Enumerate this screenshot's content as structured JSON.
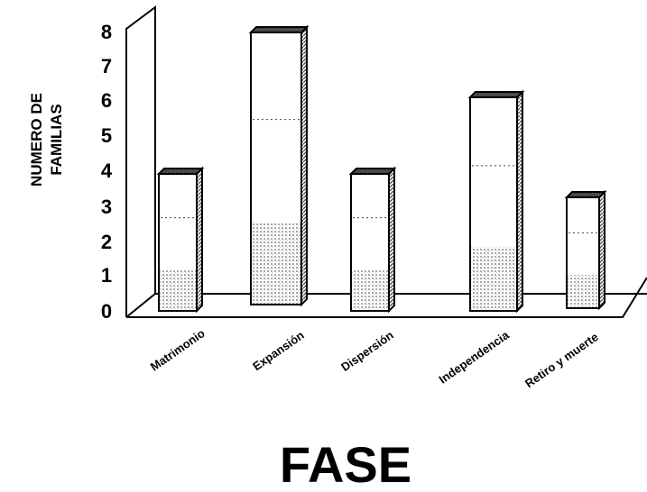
{
  "chart_data": {
    "type": "bar",
    "style": "3d",
    "categories": [
      "Matrimonio",
      "Expansión",
      "Dispersión",
      "Independencia",
      "Retiro y muerte"
    ],
    "values": [
      4,
      8,
      4,
      6,
      3
    ],
    "title": "",
    "xlabel": "FASE",
    "ylabel": [
      "NUMERO DE",
      "FAMILIAS"
    ],
    "ylim": [
      0,
      8
    ],
    "yticks": [
      "0",
      "1",
      "2",
      "3",
      "4",
      "5",
      "6",
      "7",
      "8"
    ],
    "grid": false,
    "legend": "none",
    "colors": {
      "bar_face": "#ffffff",
      "bar_side": "#9a9a9a",
      "bar_top": "#6f6f6f",
      "outline": "#000000",
      "bar_shade": "#c8c8c8"
    }
  }
}
